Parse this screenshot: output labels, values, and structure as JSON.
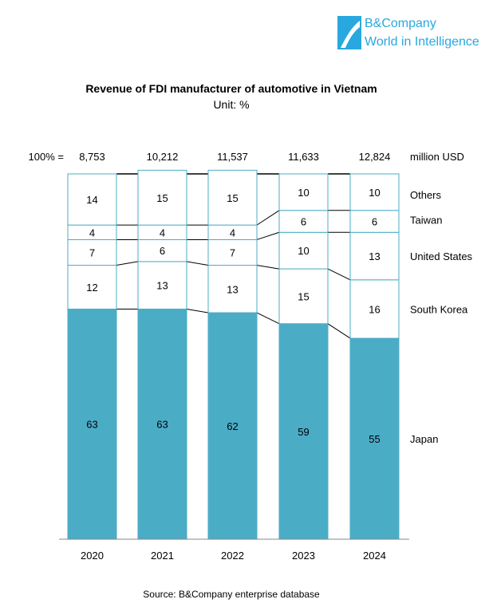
{
  "brand": {
    "name": "B&Company",
    "tagline": "World in Intelligence",
    "color": "#29a8df"
  },
  "chart_data": {
    "type": "bar",
    "stacked": true,
    "percent": true,
    "title": "Revenue of FDI manufacturer of automotive in Vietnam",
    "subtitle": "Unit: %",
    "categories": [
      "2020",
      "2021",
      "2022",
      "2023",
      "2024"
    ],
    "totals": {
      "label": "100% =",
      "unit": "million USD",
      "values": [
        "8,753",
        "10,212",
        "11,537",
        "11,633",
        "12,824"
      ]
    },
    "series": [
      {
        "name": "Japan",
        "values": [
          63,
          63,
          62,
          59,
          55
        ],
        "color": "#4bacc6"
      },
      {
        "name": "South Korea",
        "values": [
          12,
          13,
          13,
          15,
          16
        ],
        "color": "#ffffff"
      },
      {
        "name": "United States",
        "values": [
          7,
          6,
          7,
          10,
          13
        ],
        "color": "#ffffff"
      },
      {
        "name": "Taiwan",
        "values": [
          4,
          4,
          4,
          6,
          6
        ],
        "color": "#ffffff"
      },
      {
        "name": "Others",
        "values": [
          14,
          15,
          15,
          10,
          10
        ],
        "color": "#ffffff"
      }
    ],
    "border_color": "#4bacc6",
    "source": "Source: B&Company enterprise database"
  }
}
